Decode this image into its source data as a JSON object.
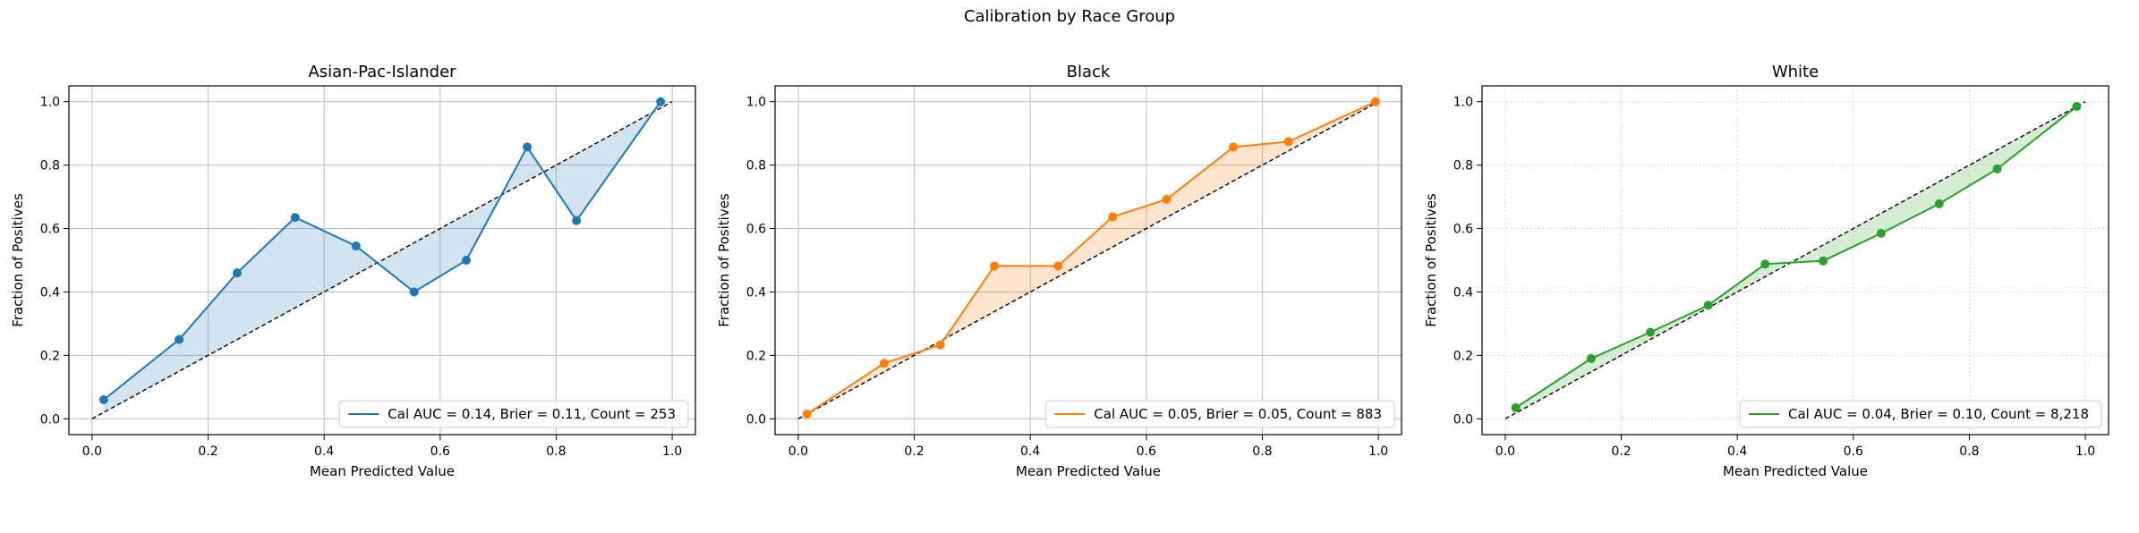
{
  "figure": {
    "title": "Calibration by Race Group"
  },
  "chart_data": [
    {
      "type": "line",
      "title": "Asian-Pac-Islander",
      "xlabel": "Mean Predicted Value",
      "ylabel": "Fraction of Positives",
      "xlim": [
        -0.04,
        1.04
      ],
      "ylim": [
        -0.05,
        1.05
      ],
      "xticks": [
        "0.0",
        "0.2",
        "0.4",
        "0.6",
        "0.8",
        "1.0"
      ],
      "yticks": [
        "0.0",
        "0.2",
        "0.4",
        "0.6",
        "0.8",
        "1.0"
      ],
      "grid": "solid",
      "color": "#1f77b4",
      "legend": {
        "label": "Cal AUC = 0.14, Brier = 0.11, Count = 253",
        "position": "lower-right"
      },
      "reference_line": [
        [
          0,
          0
        ],
        [
          1,
          1
        ]
      ],
      "fill_to_diagonal": true,
      "points": [
        [
          0.02,
          0.06
        ],
        [
          0.15,
          0.25
        ],
        [
          0.25,
          0.46
        ],
        [
          0.35,
          0.635
        ],
        [
          0.455,
          0.545
        ],
        [
          0.555,
          0.4
        ],
        [
          0.645,
          0.5
        ],
        [
          0.75,
          0.857
        ],
        [
          0.835,
          0.625
        ],
        [
          0.98,
          1.0
        ]
      ]
    },
    {
      "type": "line",
      "title": "Black",
      "xlabel": "Mean Predicted Value",
      "ylabel": "Fraction of Positives",
      "xlim": [
        -0.04,
        1.04
      ],
      "ylim": [
        -0.05,
        1.05
      ],
      "xticks": [
        "0.0",
        "0.2",
        "0.4",
        "0.6",
        "0.8",
        "1.0"
      ],
      "yticks": [
        "0.0",
        "0.2",
        "0.4",
        "0.6",
        "0.8",
        "1.0"
      ],
      "grid": "solid",
      "color": "#ff7f0e",
      "legend": {
        "label": "Cal AUC = 0.05, Brier = 0.05, Count = 883",
        "position": "lower-right"
      },
      "reference_line": [
        [
          0,
          0
        ],
        [
          1,
          1
        ]
      ],
      "fill_to_diagonal": true,
      "points": [
        [
          0.015,
          0.015
        ],
        [
          0.148,
          0.175
        ],
        [
          0.245,
          0.233
        ],
        [
          0.338,
          0.482
        ],
        [
          0.448,
          0.482
        ],
        [
          0.542,
          0.637
        ],
        [
          0.635,
          0.692
        ],
        [
          0.75,
          0.857
        ],
        [
          0.845,
          0.874
        ],
        [
          0.995,
          1.0
        ]
      ]
    },
    {
      "type": "line",
      "title": "White",
      "xlabel": "Mean Predicted Value",
      "ylabel": "Fraction of Positives",
      "xlim": [
        -0.04,
        1.04
      ],
      "ylim": [
        -0.05,
        1.05
      ],
      "xticks": [
        "0.0",
        "0.2",
        "0.4",
        "0.6",
        "0.8",
        "1.0"
      ],
      "yticks": [
        "0.0",
        "0.2",
        "0.4",
        "0.6",
        "0.8",
        "1.0"
      ],
      "grid": "dotted",
      "color": "#2ca02c",
      "legend": {
        "label": "Cal AUC = 0.04, Brier = 0.10, Count = 8,218",
        "position": "lower-right"
      },
      "reference_line": [
        [
          0,
          0
        ],
        [
          1,
          1
        ]
      ],
      "fill_to_diagonal": true,
      "points": [
        [
          0.018,
          0.035
        ],
        [
          0.148,
          0.19
        ],
        [
          0.25,
          0.273
        ],
        [
          0.35,
          0.358
        ],
        [
          0.448,
          0.488
        ],
        [
          0.548,
          0.498
        ],
        [
          0.648,
          0.585
        ],
        [
          0.748,
          0.678
        ],
        [
          0.848,
          0.788
        ],
        [
          0.985,
          0.985
        ]
      ]
    }
  ]
}
